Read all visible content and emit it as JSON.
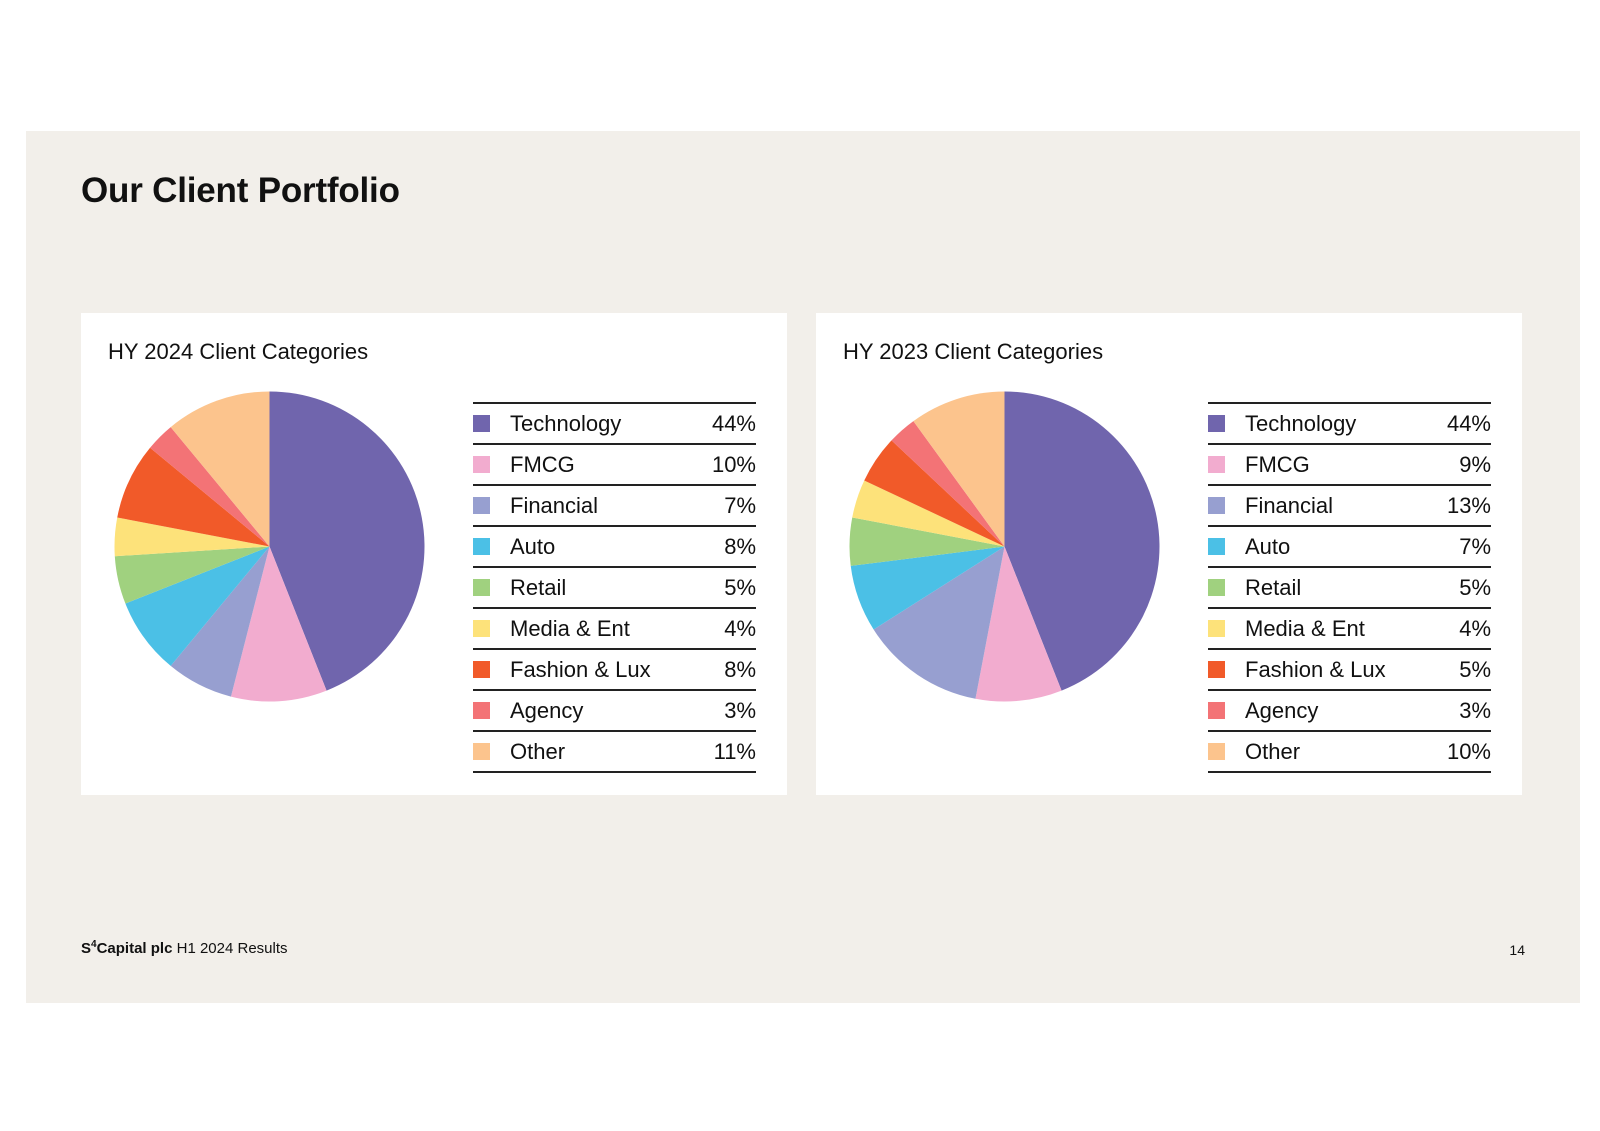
{
  "slide": {
    "title": "Our Client Portfolio",
    "footer": {
      "brand_s": "S",
      "brand_sup": "4",
      "brand_rest": "Capital plc",
      "subtitle": "H1 2024 Results",
      "page_number": "14"
    }
  },
  "chart_data": [
    {
      "type": "pie",
      "title": "HY 2024 Client Categories",
      "categories": [
        "Technology",
        "FMCG",
        "Financial",
        "Auto",
        "Retail",
        "Media & Ent",
        "Fashion & Lux",
        "Agency",
        "Other"
      ],
      "values": [
        44,
        10,
        7,
        8,
        5,
        4,
        8,
        3,
        11
      ],
      "labels": [
        "44%",
        "10%",
        "7%",
        "8%",
        "5%",
        "4%",
        "8%",
        "3%",
        "11%"
      ],
      "colors": [
        "#7065ad",
        "#f2accf",
        "#979fd0",
        "#4bc0e6",
        "#a0d17f",
        "#fde27a",
        "#f15a29",
        "#f37376",
        "#fcc48d"
      ],
      "legend": "right"
    },
    {
      "type": "pie",
      "title": "HY 2023 Client Categories",
      "categories": [
        "Technology",
        "FMCG",
        "Financial",
        "Auto",
        "Retail",
        "Media & Ent",
        "Fashion & Lux",
        "Agency",
        "Other"
      ],
      "values": [
        44,
        9,
        13,
        7,
        5,
        4,
        5,
        3,
        10
      ],
      "labels": [
        "44%",
        "9%",
        "13%",
        "7%",
        "5%",
        "4%",
        "5%",
        "3%",
        "10%"
      ],
      "colors": [
        "#7065ad",
        "#f2accf",
        "#979fd0",
        "#4bc0e6",
        "#a0d17f",
        "#fde27a",
        "#f15a29",
        "#f37376",
        "#fcc48d"
      ],
      "legend": "right"
    }
  ]
}
